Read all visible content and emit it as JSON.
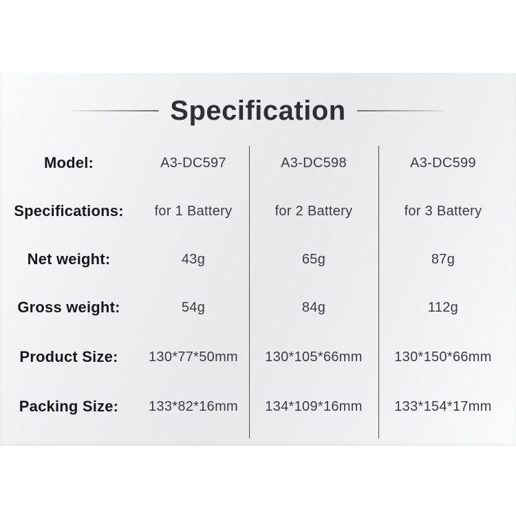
{
  "header": {
    "title": "Specification"
  },
  "table": {
    "rows": [
      {
        "label": "Model:",
        "values": [
          "A3-DC597",
          "A3-DC598",
          "A3-DC599"
        ]
      },
      {
        "label": "Specifications:",
        "values": [
          "for 1 Battery",
          "for 2 Battery",
          "for 3 Battery"
        ]
      },
      {
        "label": "Net weight:",
        "values": [
          "43g",
          "65g",
          "87g"
        ]
      },
      {
        "label": "Gross weight:",
        "values": [
          "54g",
          "84g",
          "112g"
        ]
      },
      {
        "label": "Product Size:",
        "values": [
          "130*77*50mm",
          "130*105*66mm",
          "130*150*66mm"
        ]
      },
      {
        "label": "Packing Size:",
        "values": [
          "133*82*16mm",
          "134*109*16mm",
          "133*154*17mm"
        ]
      }
    ]
  },
  "colors": {
    "panel_light": "#fafbfc",
    "panel_mid": "#e6e8ea",
    "title_text": "#2d3034",
    "label_text": "#17191c",
    "value_text": "#393c40",
    "divider": "#45484c",
    "rule": "#6b6e72"
  }
}
